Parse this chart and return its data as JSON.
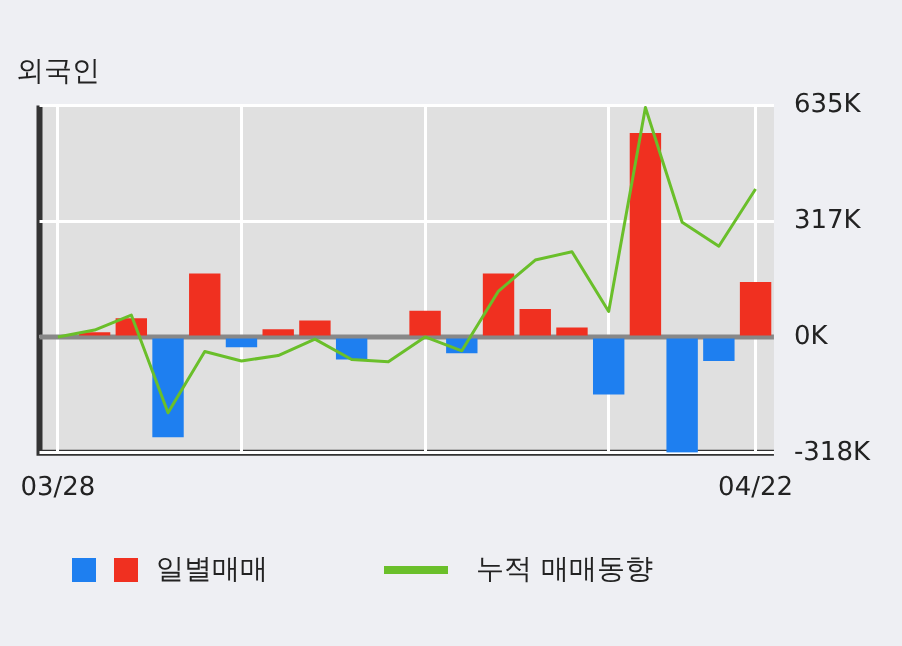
{
  "chart_data": {
    "type": "bar",
    "title": "외국인",
    "categories": [
      "03/28",
      null,
      null,
      null,
      null,
      null,
      null,
      null,
      null,
      null,
      null,
      null,
      null,
      null,
      null,
      null,
      null,
      null,
      null,
      "04/22"
    ],
    "series": [
      {
        "name": "일별매매",
        "colors": [
          "#f03020",
          "#f03020",
          "#f03020",
          "#1e7ff0",
          "#f03020",
          "#1e7ff0",
          "#f03020",
          "#f03020",
          "#1e7ff0",
          "#f03020",
          "#f03020",
          "#1e7ff0",
          "#f03020",
          "#f03020",
          "#f03020",
          "#1e7ff0",
          "#f03020",
          "#1e7ff0",
          "#1e7ff0",
          "#f03020"
        ],
        "values": [
          0,
          13000,
          51000,
          -275000,
          174000,
          -28000,
          21000,
          45000,
          -62000,
          0,
          72000,
          -45000,
          174000,
          77000,
          26000,
          -158000,
          560000,
          -317000,
          -66000,
          151000
        ]
      },
      {
        "name": "누적 매매동향",
        "type": "line",
        "color": "#6abf2a",
        "values": [
          0,
          19000,
          60000,
          -208000,
          -40000,
          -66000,
          -51000,
          -6000,
          -62000,
          -68000,
          0,
          -38000,
          126000,
          211000,
          234000,
          70000,
          630000,
          315000,
          249000,
          406000
        ]
      }
    ],
    "ylim": [
      -318000,
      635000
    ],
    "yticks": [
      {
        "value": -318000,
        "label": "-318K"
      },
      {
        "value": 0,
        "label": "0K"
      },
      {
        "value": 317000,
        "label": "317K"
      },
      {
        "value": 635000,
        "label": "635K"
      }
    ],
    "ref_lines": [
      {
        "axis": "y",
        "value": 0,
        "color": "#888888"
      }
    ],
    "grid": true,
    "legend": "bottom",
    "marker": "none",
    "line_style": "solid"
  }
}
